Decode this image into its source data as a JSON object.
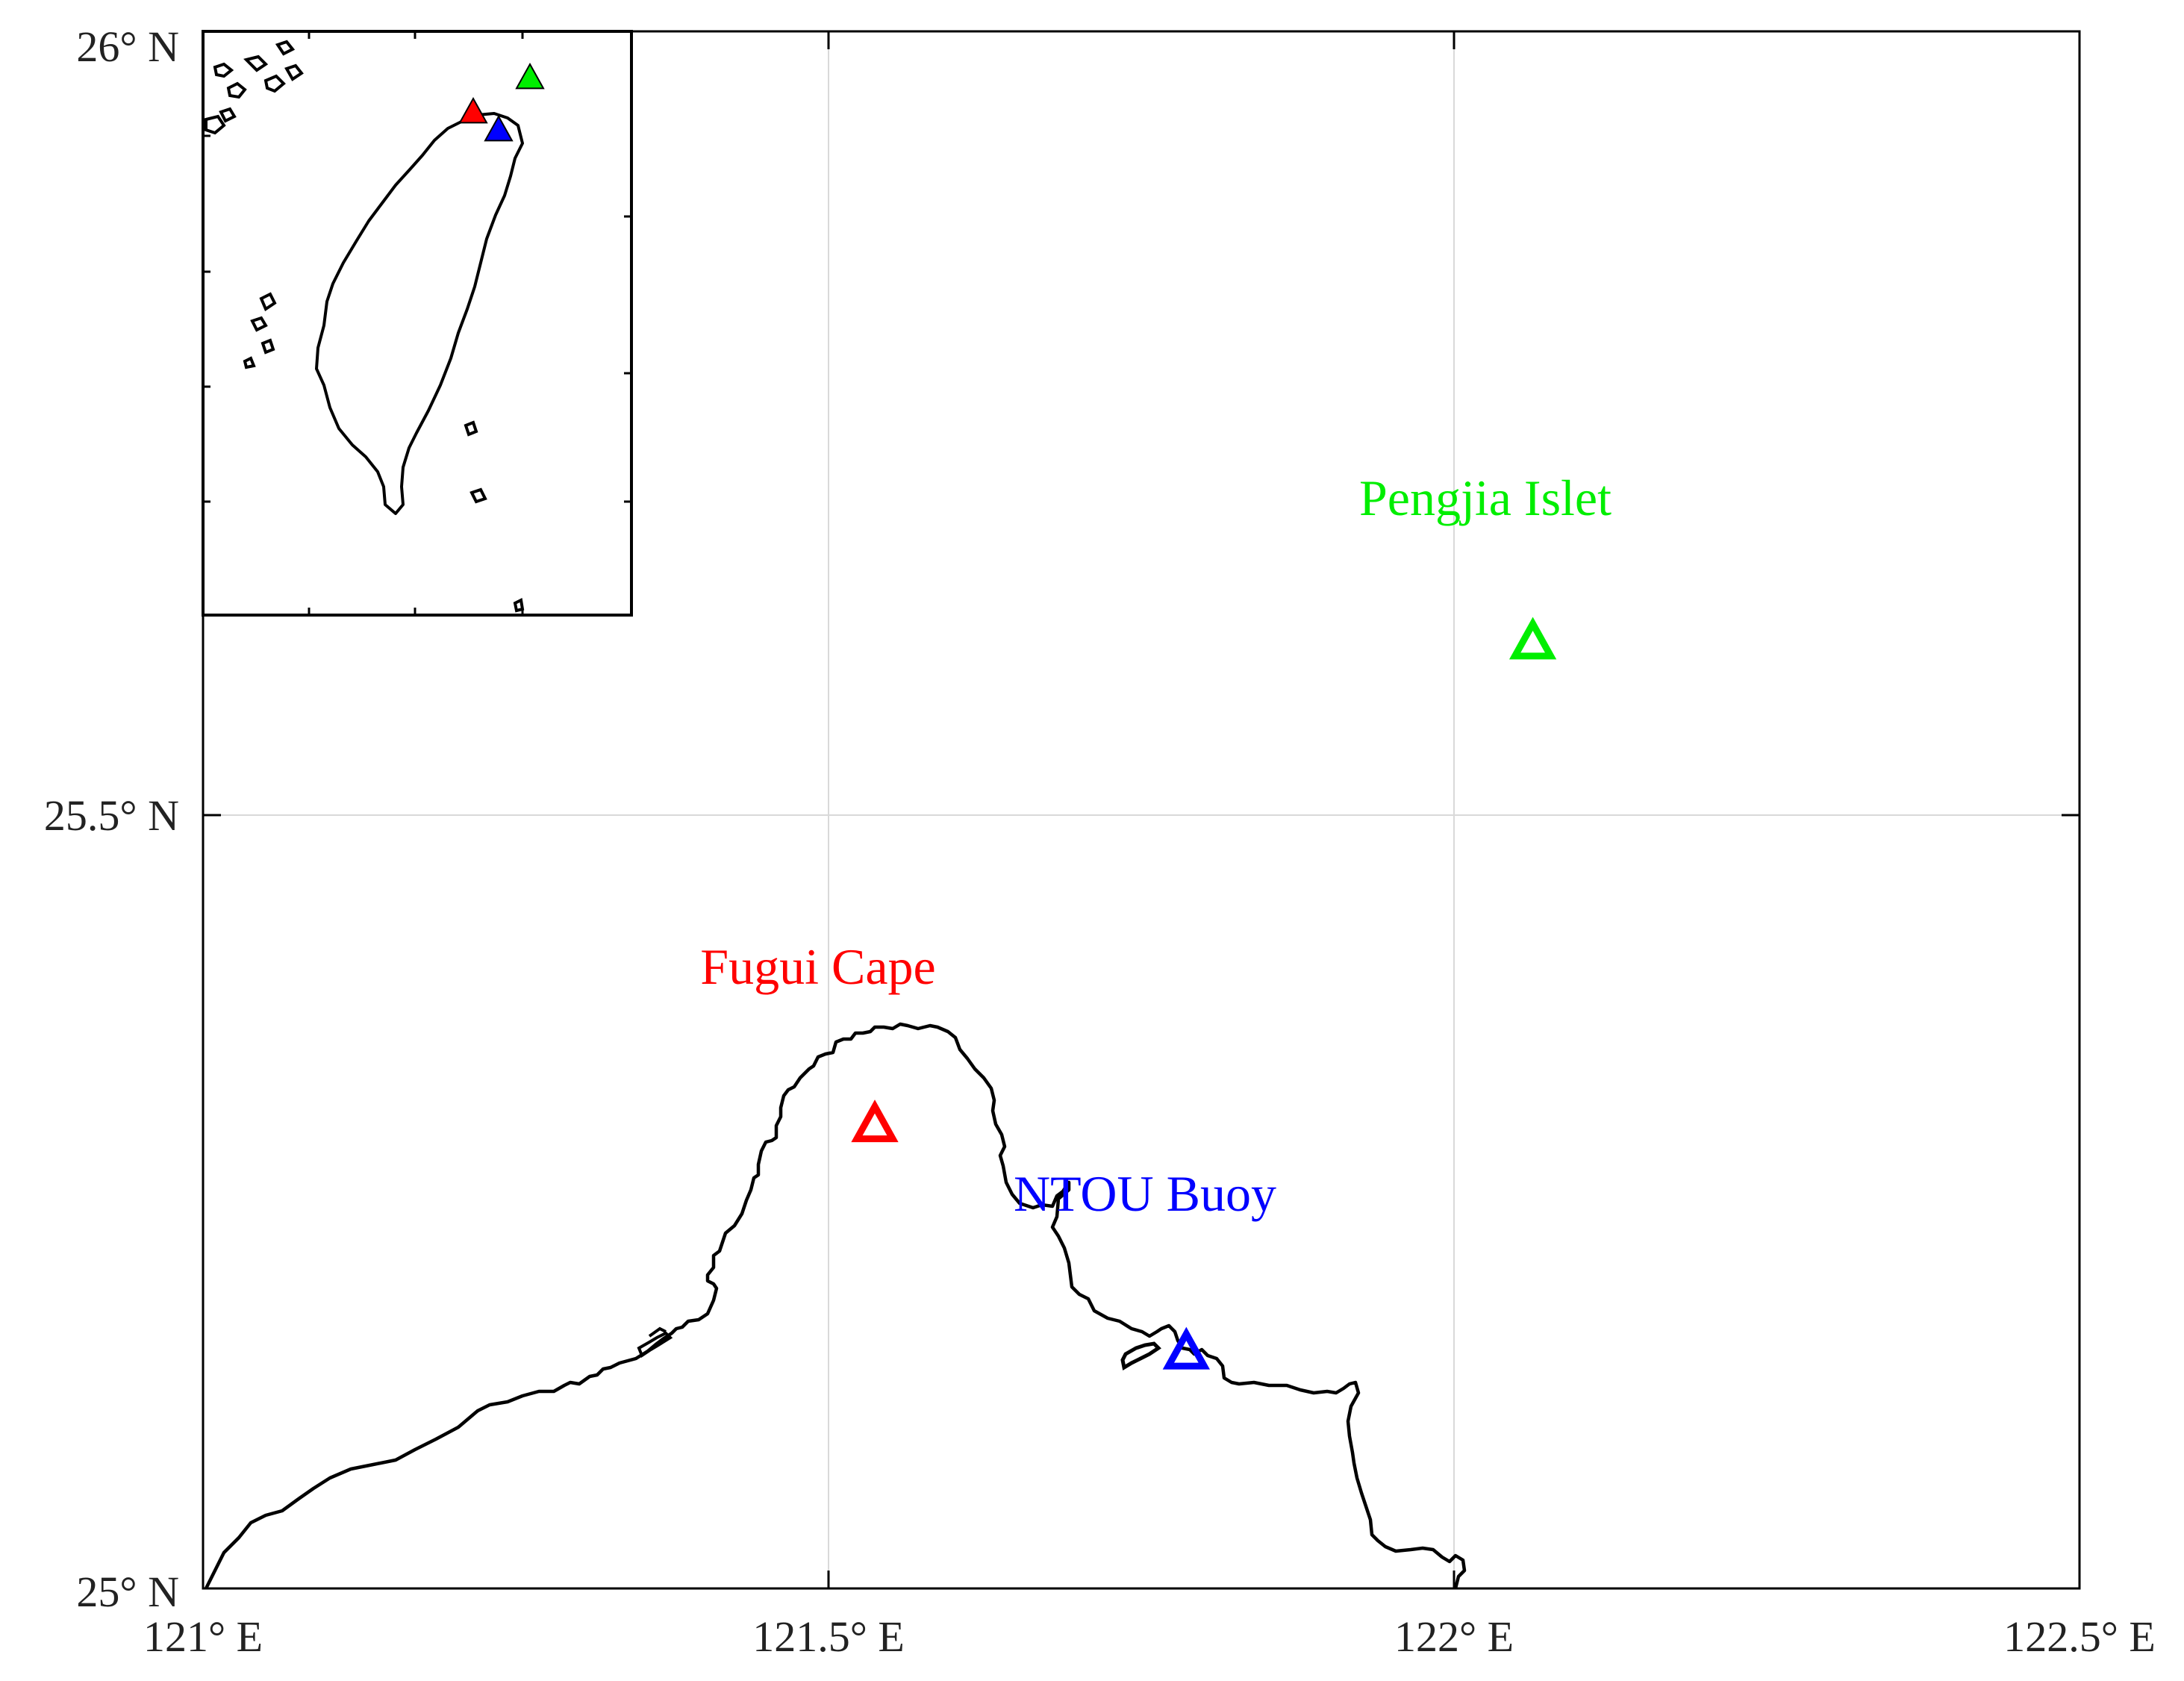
{
  "map": {
    "x_ticks": [
      "121° E",
      "121.5° E",
      "122° E",
      "122.5° E"
    ],
    "y_ticks": [
      "26° N",
      "25.5° N",
      "25° N"
    ],
    "colors": {
      "grid": "#d9d9d9",
      "frame": "#000000",
      "coast": "#000000"
    }
  },
  "sites": [
    {
      "name": "Fugui Cape",
      "lon": 121.537,
      "lat": 25.298,
      "color": "#ff0000"
    },
    {
      "name": "NTOU Buoy",
      "lon": 121.786,
      "lat": 25.152,
      "color": "#0000ff"
    },
    {
      "name": "Pengjia Islet",
      "lon": 122.063,
      "lat": 25.608,
      "color": "#00ee00"
    }
  ],
  "inset": {
    "content": "Taiwan overview map",
    "markers": [
      {
        "site": "Fugui Cape",
        "color": "#ff0000"
      },
      {
        "site": "NTOU Buoy",
        "color": "#0000ff"
      },
      {
        "site": "Pengjia Islet",
        "color": "#00ee00"
      }
    ]
  }
}
